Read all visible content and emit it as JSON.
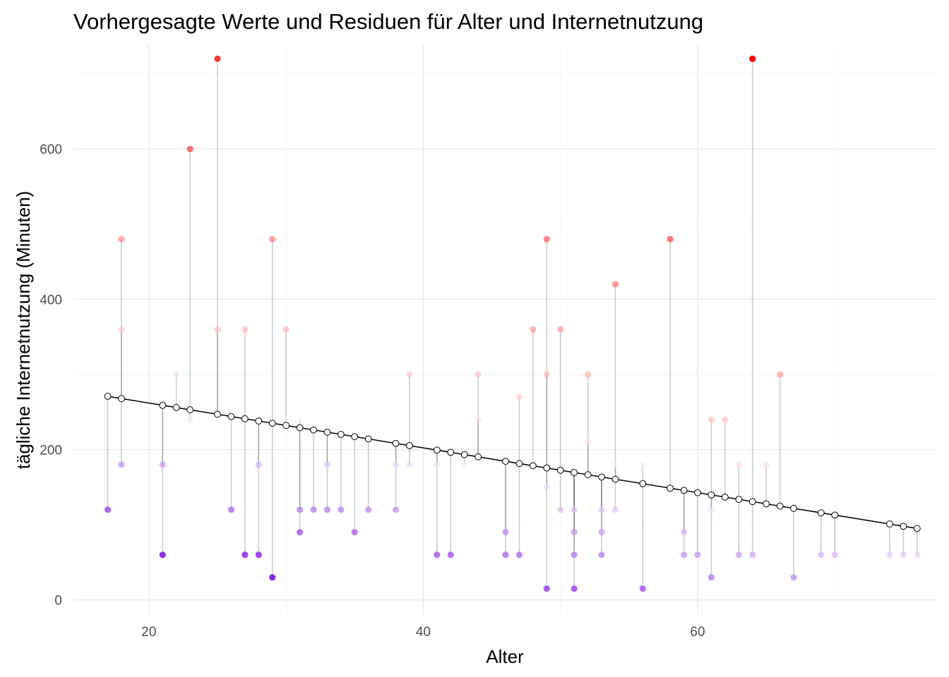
{
  "chart_data": {
    "type": "scatter",
    "title": "Vorhergesagte Werte und Residuen für Alter und Internetnutzung",
    "xlabel": "Alter",
    "ylabel": "tägliche Internetnutzung (Minuten)",
    "xlim": [
      14.5,
      77.5
    ],
    "ylim": [
      -20,
      740
    ],
    "x_ticks": [
      20,
      40,
      60
    ],
    "y_ticks": [
      0,
      200,
      400,
      600
    ],
    "grid": true,
    "legend": "none",
    "regression": {
      "intercept": 321.5,
      "slope": -2.98
    },
    "fitted_x": [
      17,
      18,
      21,
      22,
      23,
      25,
      26,
      27,
      28,
      29,
      30,
      31,
      32,
      33,
      34,
      35,
      36,
      38,
      39,
      41,
      42,
      43,
      44,
      46,
      47,
      48,
      49,
      50,
      51,
      52,
      53,
      54,
      56,
      58,
      59,
      60,
      61,
      62,
      63,
      64,
      65,
      66,
      67,
      69,
      70,
      74,
      75,
      76
    ],
    "observations": [
      {
        "x": 17,
        "y": 120
      },
      {
        "x": 18,
        "y": 480
      },
      {
        "x": 18,
        "y": 360
      },
      {
        "x": 18,
        "y": 180
      },
      {
        "x": 21,
        "y": 60
      },
      {
        "x": 21,
        "y": 180
      },
      {
        "x": 22,
        "y": 300
      },
      {
        "x": 23,
        "y": 600
      },
      {
        "x": 23,
        "y": 240
      },
      {
        "x": 25,
        "y": 720
      },
      {
        "x": 25,
        "y": 360
      },
      {
        "x": 26,
        "y": 120
      },
      {
        "x": 27,
        "y": 360
      },
      {
        "x": 27,
        "y": 60
      },
      {
        "x": 28,
        "y": 60
      },
      {
        "x": 28,
        "y": 180
      },
      {
        "x": 29,
        "y": 480
      },
      {
        "x": 29,
        "y": 30
      },
      {
        "x": 30,
        "y": 360
      },
      {
        "x": 30,
        "y": 240
      },
      {
        "x": 31,
        "y": 120
      },
      {
        "x": 31,
        "y": 90
      },
      {
        "x": 31,
        "y": 240
      },
      {
        "x": 32,
        "y": 120
      },
      {
        "x": 33,
        "y": 120
      },
      {
        "x": 33,
        "y": 180
      },
      {
        "x": 34,
        "y": 120
      },
      {
        "x": 35,
        "y": 90
      },
      {
        "x": 36,
        "y": 120
      },
      {
        "x": 38,
        "y": 120
      },
      {
        "x": 38,
        "y": 180
      },
      {
        "x": 39,
        "y": 300
      },
      {
        "x": 39,
        "y": 180
      },
      {
        "x": 41,
        "y": 60
      },
      {
        "x": 41,
        "y": 180
      },
      {
        "x": 42,
        "y": 60
      },
      {
        "x": 43,
        "y": 180
      },
      {
        "x": 44,
        "y": 300
      },
      {
        "x": 44,
        "y": 240
      },
      {
        "x": 46,
        "y": 60
      },
      {
        "x": 46,
        "y": 90
      },
      {
        "x": 47,
        "y": 270
      },
      {
        "x": 47,
        "y": 60
      },
      {
        "x": 48,
        "y": 360
      },
      {
        "x": 49,
        "y": 480
      },
      {
        "x": 49,
        "y": 300
      },
      {
        "x": 49,
        "y": 15
      },
      {
        "x": 49,
        "y": 150
      },
      {
        "x": 50,
        "y": 360
      },
      {
        "x": 50,
        "y": 120
      },
      {
        "x": 51,
        "y": 15
      },
      {
        "x": 51,
        "y": 60
      },
      {
        "x": 51,
        "y": 90
      },
      {
        "x": 51,
        "y": 120
      },
      {
        "x": 52,
        "y": 300
      },
      {
        "x": 52,
        "y": 210
      },
      {
        "x": 53,
        "y": 60
      },
      {
        "x": 53,
        "y": 90
      },
      {
        "x": 53,
        "y": 120
      },
      {
        "x": 54,
        "y": 420
      },
      {
        "x": 54,
        "y": 120
      },
      {
        "x": 54,
        "y": 180
      },
      {
        "x": 56,
        "y": 15
      },
      {
        "x": 56,
        "y": 180
      },
      {
        "x": 58,
        "y": 480
      },
      {
        "x": 59,
        "y": 60
      },
      {
        "x": 59,
        "y": 90
      },
      {
        "x": 60,
        "y": 60
      },
      {
        "x": 61,
        "y": 240
      },
      {
        "x": 61,
        "y": 30
      },
      {
        "x": 61,
        "y": 120
      },
      {
        "x": 62,
        "y": 240
      },
      {
        "x": 63,
        "y": 180
      },
      {
        "x": 63,
        "y": 60
      },
      {
        "x": 64,
        "y": 720
      },
      {
        "x": 64,
        "y": 60
      },
      {
        "x": 65,
        "y": 180
      },
      {
        "x": 66,
        "y": 300
      },
      {
        "x": 67,
        "y": 30
      },
      {
        "x": 69,
        "y": 60
      },
      {
        "x": 70,
        "y": 60
      },
      {
        "x": 74,
        "y": 60
      },
      {
        "x": 75,
        "y": 60
      },
      {
        "x": 76,
        "y": 60
      }
    ],
    "colors": {
      "positive": "#ff0000",
      "negative": "#8a2be2",
      "neutral": "#ffffff",
      "fit_line": "#000000",
      "segment": "#000000",
      "grid": "#ebebeb",
      "tick_text": "#4d4d4d"
    }
  }
}
